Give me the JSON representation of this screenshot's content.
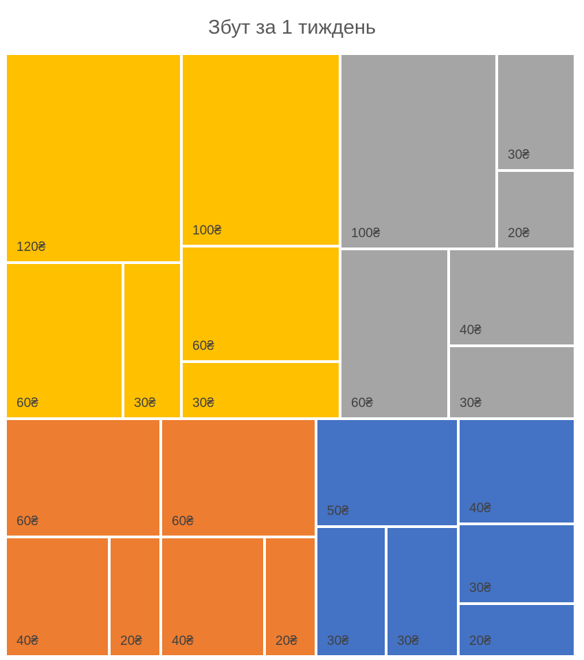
{
  "chart_data": {
    "type": "treemap",
    "title": "Збут за 1 тиждень",
    "colors": [
      "#FFC000",
      "#A5A5A5",
      "#ED7D31",
      "#4472C4"
    ],
    "groups": [
      {
        "color": "#FFC000",
        "items": [
          {
            "value": 120,
            "label": "120₴"
          },
          {
            "value": 100,
            "label": "100₴"
          },
          {
            "value": 60,
            "label": "60₴"
          },
          {
            "value": 60,
            "label": "60₴"
          },
          {
            "value": 30,
            "label": "30₴"
          },
          {
            "value": 30,
            "label": "30₴"
          }
        ]
      },
      {
        "color": "#A5A5A5",
        "items": [
          {
            "value": 100,
            "label": "100₴"
          },
          {
            "value": 60,
            "label": "60₴"
          },
          {
            "value": 40,
            "label": "40₴"
          },
          {
            "value": 30,
            "label": "30₴"
          },
          {
            "value": 30,
            "label": "30₴"
          },
          {
            "value": 20,
            "label": "20₴"
          }
        ]
      },
      {
        "color": "#ED7D31",
        "items": [
          {
            "value": 60,
            "label": "60₴"
          },
          {
            "value": 60,
            "label": "60₴"
          },
          {
            "value": 40,
            "label": "40₴"
          },
          {
            "value": 40,
            "label": "40₴"
          },
          {
            "value": 20,
            "label": "20₴"
          },
          {
            "value": 20,
            "label": "20₴"
          }
        ]
      },
      {
        "color": "#4472C4",
        "items": [
          {
            "value": 50,
            "label": "50₴"
          },
          {
            "value": 40,
            "label": "40₴"
          },
          {
            "value": 30,
            "label": "30₴"
          },
          {
            "value": 30,
            "label": "30₴"
          },
          {
            "value": 30,
            "label": "30₴"
          },
          {
            "value": 20,
            "label": "20₴"
          }
        ]
      }
    ]
  }
}
